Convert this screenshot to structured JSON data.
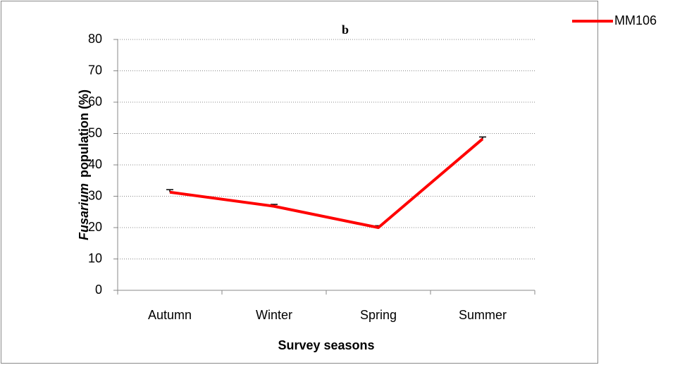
{
  "chart_data": {
    "type": "line",
    "title": "b",
    "x_label": "Survey seasons",
    "y_label": {
      "italic": "Fusarium",
      "rest": "population (%)"
    },
    "categories": [
      "Autumn",
      "Winter",
      "Spring",
      "Summer"
    ],
    "series": [
      {
        "name": "MM106",
        "color": "#ff0000",
        "values": [
          31.3,
          26.8,
          20,
          48.3
        ],
        "errors": [
          0.8,
          0.6,
          0.6,
          0.6
        ]
      }
    ],
    "ylim": [
      0,
      80
    ],
    "yticks": [
      0,
      10,
      20,
      30,
      40,
      50,
      60,
      70,
      80
    ],
    "grid": true,
    "legend": "top-right"
  }
}
